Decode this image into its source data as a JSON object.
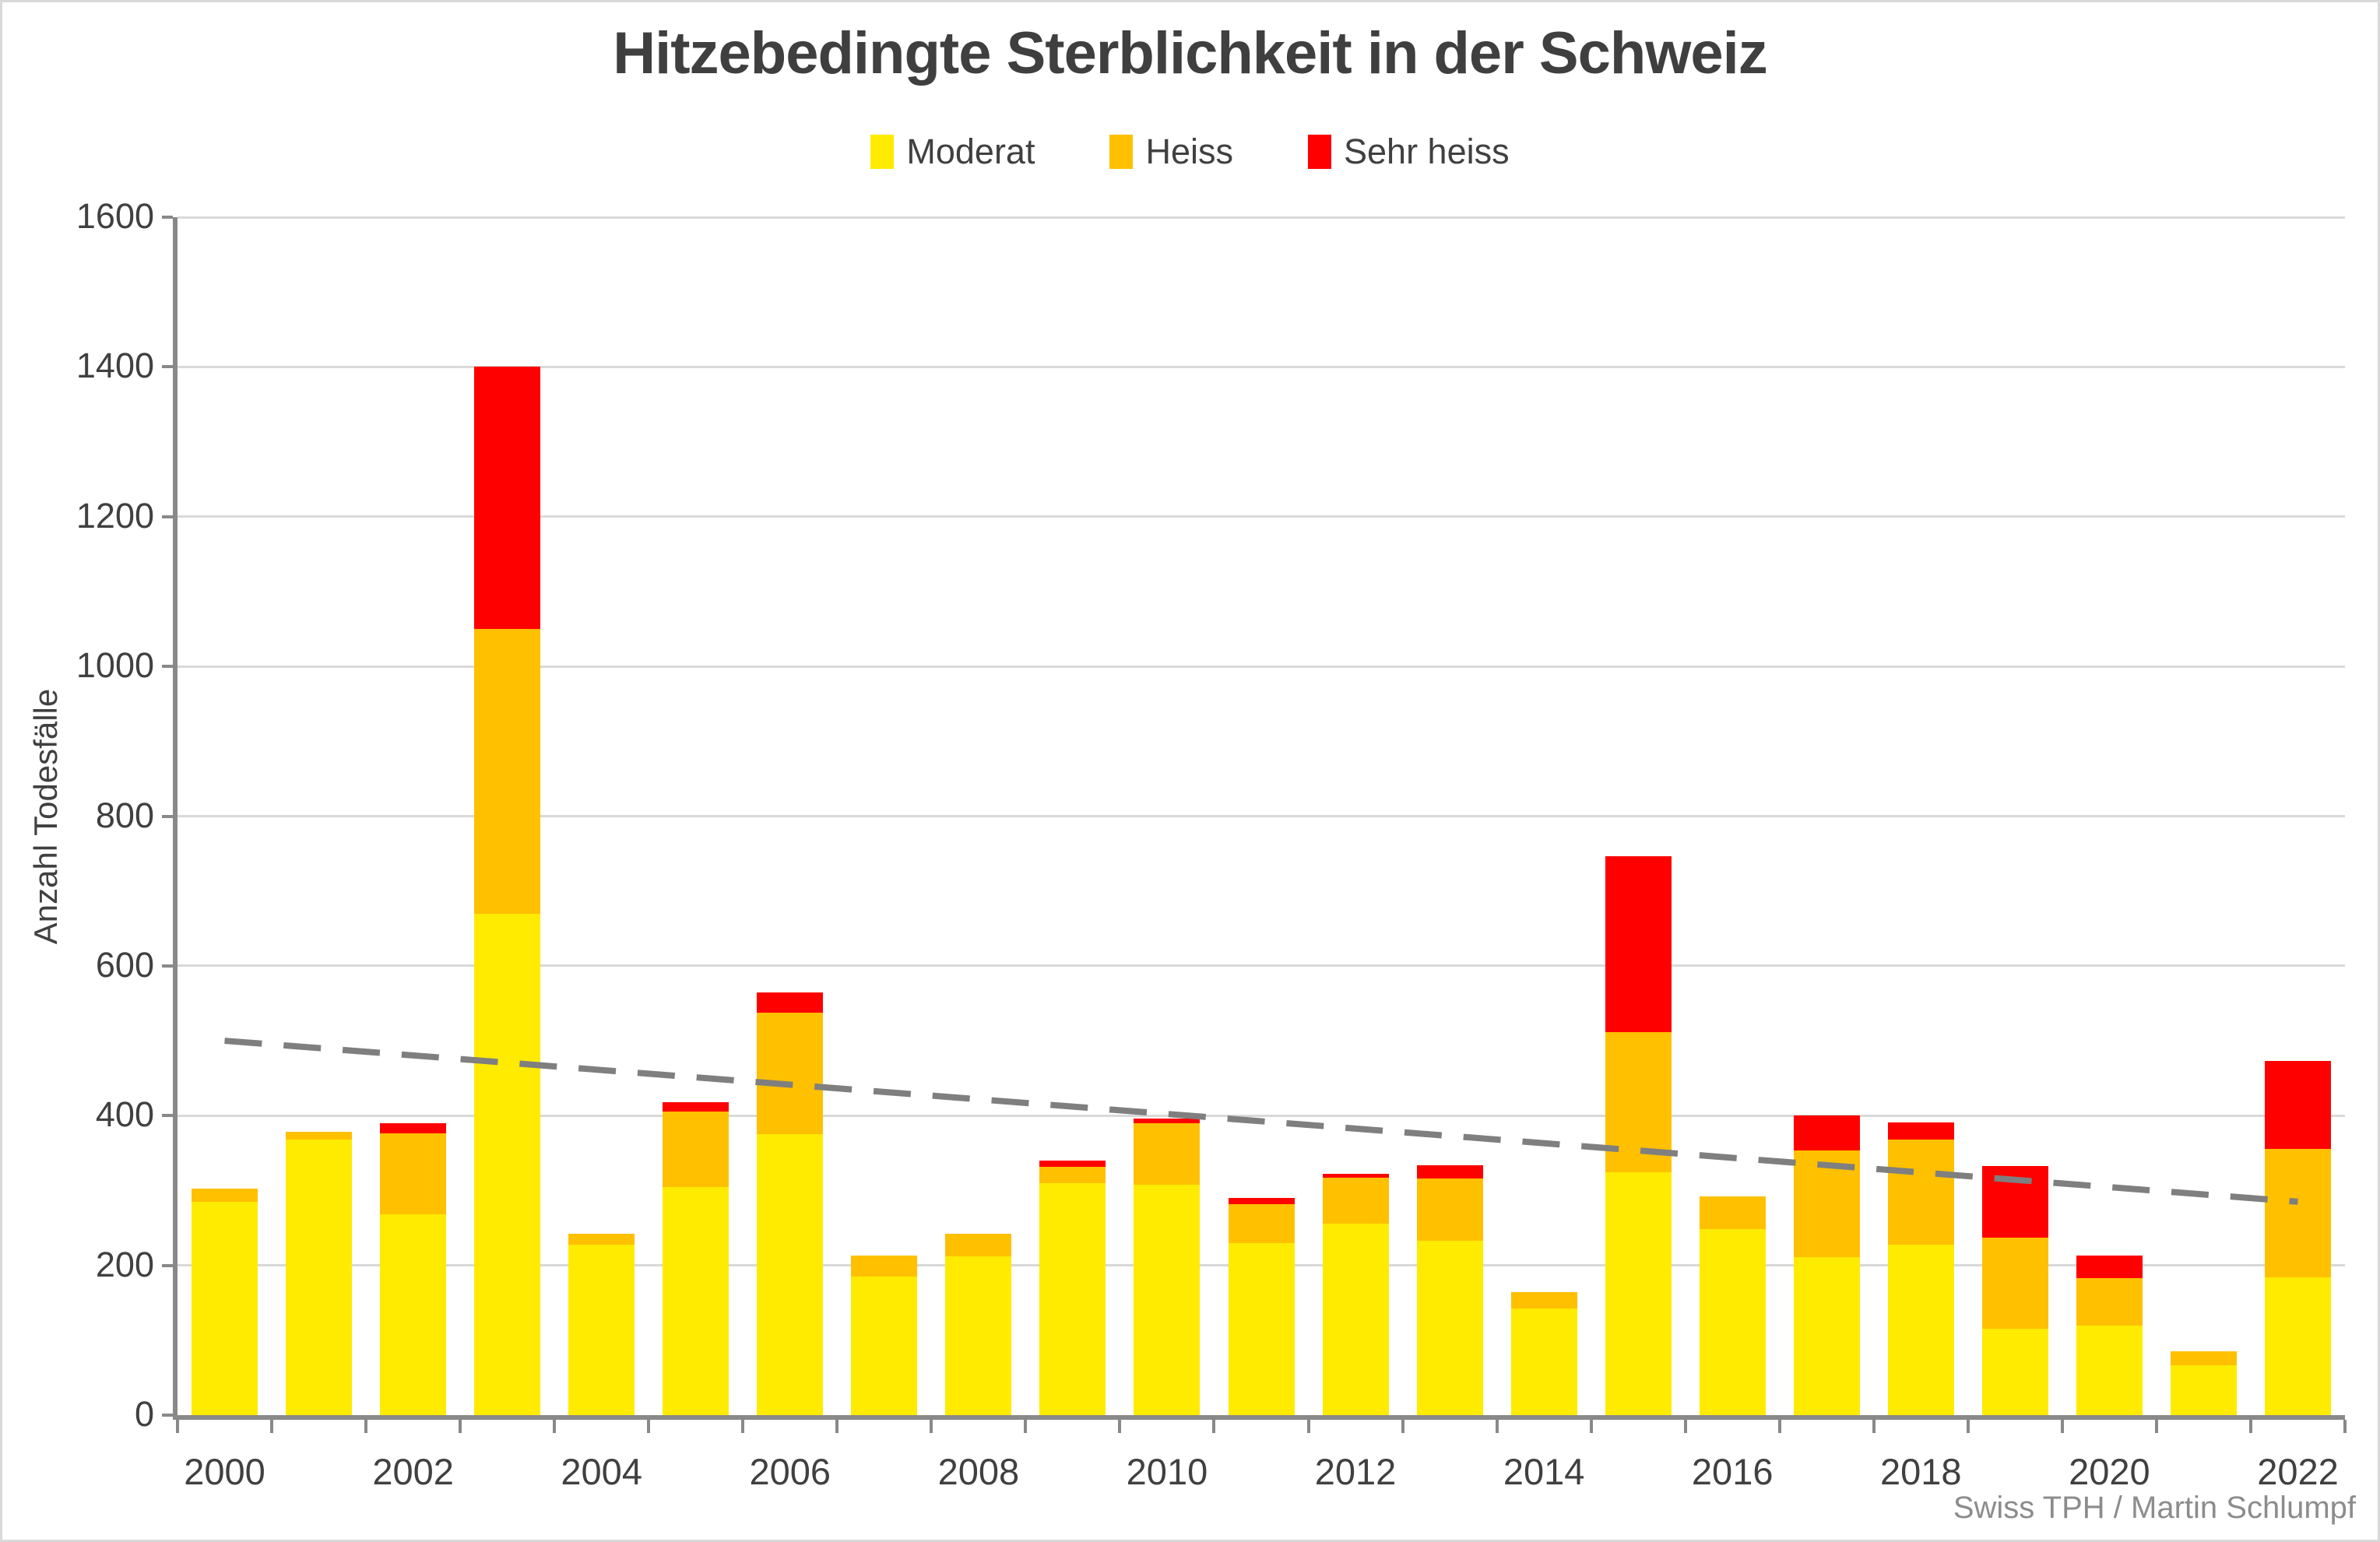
{
  "chart_data": {
    "type": "bar",
    "stacked": true,
    "title": "Hitzebedingte Sterblichkeit in der Schweiz",
    "ylabel": "Anzahl Todesfälle",
    "attribution": "Swiss TPH / Martin Schlumpf",
    "grid": true,
    "legend_position": "top",
    "ylim": [
      0,
      1600
    ],
    "ytick_step": 200,
    "categories": [
      2000,
      2001,
      2002,
      2003,
      2004,
      2005,
      2006,
      2007,
      2008,
      2009,
      2010,
      2011,
      2012,
      2013,
      2014,
      2015,
      2016,
      2017,
      2018,
      2019,
      2020,
      2021,
      2022
    ],
    "x_labeled_years": [
      2000,
      2002,
      2004,
      2006,
      2008,
      2010,
      2012,
      2014,
      2016,
      2018,
      2020,
      2022
    ],
    "series": [
      {
        "name": "Moderat",
        "color": "#FFEB00",
        "values": [
          285,
          368,
          268,
          670,
          228,
          305,
          375,
          185,
          212,
          310,
          308,
          230,
          256,
          233,
          142,
          324,
          248,
          211,
          228,
          115,
          120,
          67,
          184
        ]
      },
      {
        "name": "Heiss",
        "color": "#FFC000",
        "values": [
          18,
          10,
          108,
          380,
          14,
          100,
          162,
          28,
          30,
          22,
          82,
          52,
          61,
          83,
          22,
          188,
          44,
          143,
          140,
          122,
          63,
          18,
          172
        ]
      },
      {
        "name": "Sehr heiss",
        "color": "#FF0000",
        "values": [
          0,
          0,
          14,
          350,
          0,
          13,
          28,
          0,
          0,
          8,
          6,
          8,
          5,
          18,
          0,
          235,
          0,
          46,
          23,
          96,
          30,
          0,
          117
        ]
      }
    ],
    "trend_line": {
      "start_year": 2000,
      "end_year": 2022,
      "start_value": 500,
      "end_value": 285,
      "color": "#7f7f7f",
      "style": "dashed"
    },
    "colors": {
      "gridline": "#d9d9d9",
      "axis": "#898989",
      "text": "#404040",
      "attribution_text": "#8c8c8c"
    }
  }
}
